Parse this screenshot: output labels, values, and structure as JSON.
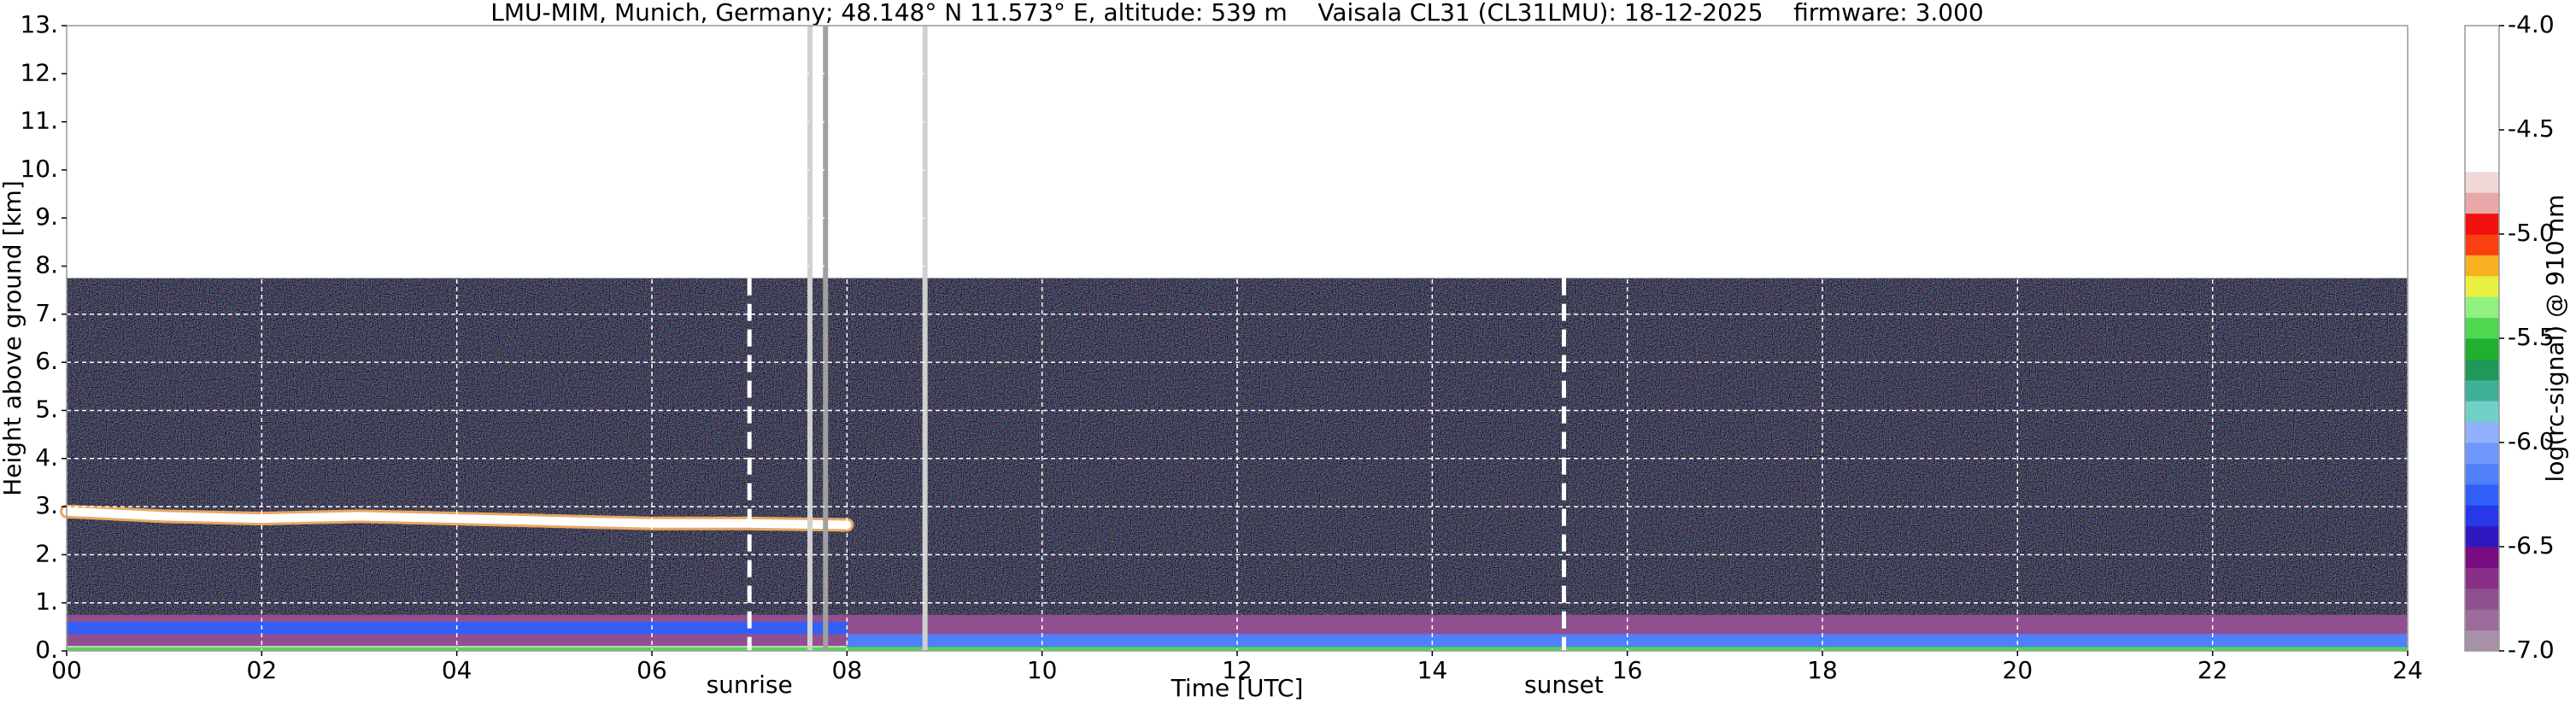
{
  "chart_data": {
    "type": "heatmap",
    "title": "LMU-MIM, Munich, Germany; 48.148° N 11.573° E, altitude: 539 m    Vaisala CL31 (CL31LMU): 18-12-2025    firmware: 3.000",
    "x_label": "Time [UTC]",
    "y_label": "Height above ground [km]",
    "colorbar_label": "log(rc-signal) @ 910 nm",
    "xlim": [
      0,
      24
    ],
    "xticks": [
      {
        "value": 0,
        "label": "00"
      },
      {
        "value": 2,
        "label": "02"
      },
      {
        "value": 4,
        "label": "04"
      },
      {
        "value": 6,
        "label": "06"
      },
      {
        "value": 8,
        "label": "08"
      },
      10,
      12,
      14,
      16,
      18,
      20,
      22,
      24
    ],
    "ylim": [
      0,
      13
    ],
    "yticks": [
      {
        "value": 0,
        "label": "0."
      },
      {
        "value": 1,
        "label": "1."
      },
      {
        "value": 2,
        "label": "2."
      },
      {
        "value": 3,
        "label": "3."
      },
      {
        "value": 4,
        "label": "4."
      },
      {
        "value": 5,
        "label": "5."
      },
      {
        "value": 6,
        "label": "6."
      },
      {
        "value": 7,
        "label": "7."
      },
      {
        "value": 8,
        "label": "8."
      },
      {
        "value": 9,
        "label": "9."
      },
      {
        "value": 10,
        "label": "10."
      },
      {
        "value": 11,
        "label": "11."
      },
      {
        "value": 12,
        "label": "12."
      },
      {
        "value": 13,
        "label": "13."
      }
    ],
    "clim": [
      -7,
      -4
    ],
    "cticks": [
      {
        "value": -4,
        "label": "-4.0"
      },
      -4.5,
      {
        "value": -5,
        "label": "-5.0"
      },
      -5.5,
      {
        "value": -6,
        "label": "-6.0"
      },
      -6.5,
      {
        "value": -7,
        "label": "-7.0"
      }
    ],
    "colors": [
      "#a890a8",
      "#9c6c9c",
      "#905090",
      "#883088",
      "#780c80",
      "#3018c0",
      "#2838e8",
      "#3060f8",
      "#5080fa",
      "#7098fc",
      "#90b0fd",
      "#70d0c8",
      "#40b098",
      "#209858",
      "#20b030",
      "#50d850",
      "#90f080",
      "#e8f040",
      "#f8b020",
      "#f84010",
      "#f01010",
      "#e8a8a8",
      "#f0d8d8",
      "#ffffff",
      "#ffffff",
      "#ffffff",
      "#ffffff",
      "#ffffff",
      "#ffffff",
      "#ffffff"
    ],
    "grid": true,
    "noise_region": {
      "x": [
        0,
        24
      ],
      "y": [
        0.7,
        7.75
      ]
    },
    "regions": [
      {
        "x": [
          0,
          24
        ],
        "y": [
          0.1,
          0.75
        ],
        "value": -6.75
      },
      {
        "x": [
          0,
          8
        ],
        "y": [
          0.35,
          0.6
        ],
        "value": -6.3
      },
      {
        "x": [
          8,
          24
        ],
        "y": [
          0.05,
          0.35
        ],
        "value": -6.15
      },
      {
        "x": [
          0,
          24
        ],
        "y": [
          0,
          0.08
        ],
        "value": -5.45
      }
    ],
    "cloud_layer": {
      "x": [
        0,
        1,
        2,
        3,
        4,
        5,
        6,
        7,
        8
      ],
      "y": [
        2.9,
        2.8,
        2.75,
        2.8,
        2.75,
        2.7,
        2.65,
        2.65,
        2.62
      ],
      "value": -4.0
    },
    "data_gaps": [
      7.62,
      7.78,
      8.8
    ],
    "events": [
      {
        "value": 7.0,
        "label": "sunrise"
      },
      {
        "value": 15.35,
        "label": "sunset"
      }
    ]
  }
}
